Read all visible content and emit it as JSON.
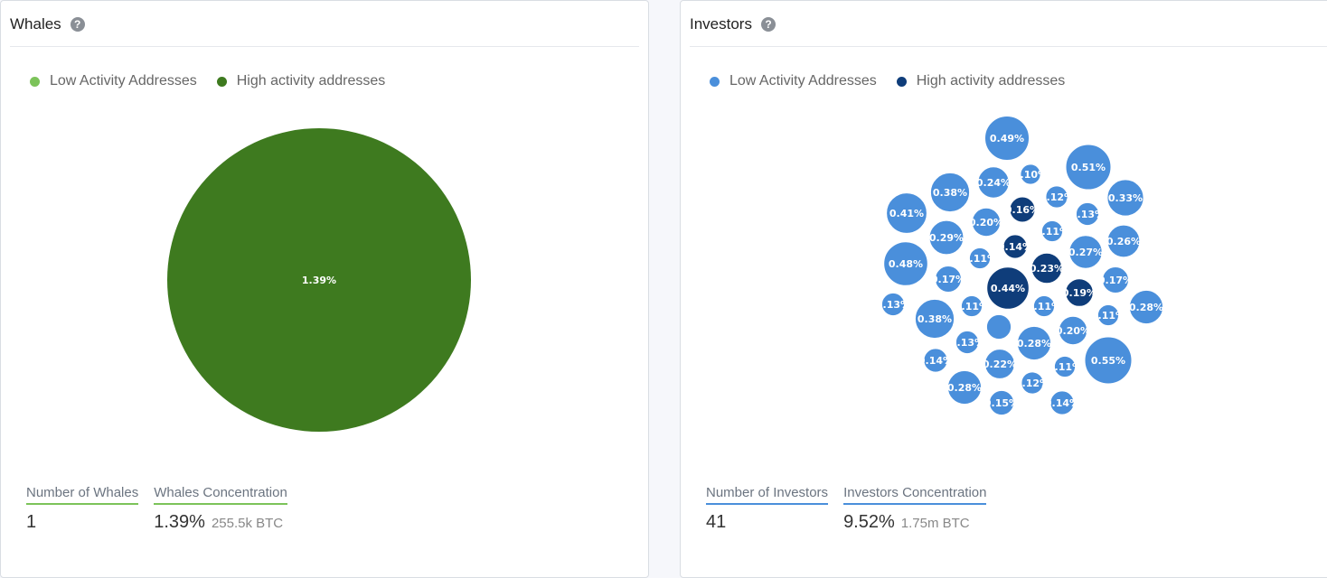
{
  "whales": {
    "title": "Whales",
    "help_icon": "question-circle-icon",
    "legend": [
      {
        "label": "Low Activity Addresses",
        "color": "#7cc35a"
      },
      {
        "label": "High activity addresses",
        "color": "#3e7a1f"
      }
    ],
    "chart_data": {
      "type": "pie",
      "slices": [
        {
          "label": "1.39%",
          "value": 1.39,
          "group": "High activity addresses"
        }
      ]
    },
    "stats": {
      "count_label": "Number of Whales",
      "count_value": "1",
      "concentration_label": "Whales Concentration",
      "concentration_value": "1.39%",
      "concentration_sub": "255.5k BTC"
    }
  },
  "investors": {
    "title": "Investors",
    "help_icon": "question-circle-icon",
    "legend": [
      {
        "label": "Low Activity Addresses",
        "color": "#4a8fdb"
      },
      {
        "label": "High activity addresses",
        "color": "#0f3d7a"
      }
    ],
    "chart_data": {
      "type": "bubble",
      "points": [
        {
          "label": "0.49%",
          "value": 0.49,
          "group": "low"
        },
        {
          "label": "0.51%",
          "value": 0.51,
          "group": "low"
        },
        {
          "label": "0.10%",
          "value": 0.1,
          "group": "low"
        },
        {
          "label": "0.24%",
          "value": 0.24,
          "group": "low"
        },
        {
          "label": "0.38%",
          "value": 0.38,
          "group": "low"
        },
        {
          "label": "0.12%",
          "value": 0.12,
          "group": "low"
        },
        {
          "label": "0.33%",
          "value": 0.33,
          "group": "low"
        },
        {
          "label": "0.16%",
          "value": 0.16,
          "group": "high"
        },
        {
          "label": "0.13%",
          "value": 0.13,
          "group": "low"
        },
        {
          "label": "0.41%",
          "value": 0.41,
          "group": "low"
        },
        {
          "label": "0.20%",
          "value": 0.2,
          "group": "low"
        },
        {
          "label": "0.11%",
          "value": 0.11,
          "group": "low"
        },
        {
          "label": "0.26%",
          "value": 0.26,
          "group": "low"
        },
        {
          "label": "0.29%",
          "value": 0.29,
          "group": "low"
        },
        {
          "label": "0.14%",
          "value": 0.14,
          "group": "high"
        },
        {
          "label": "0.27%",
          "value": 0.27,
          "group": "low"
        },
        {
          "label": "0.11%",
          "value": 0.11,
          "group": "low"
        },
        {
          "label": "0.48%",
          "value": 0.48,
          "group": "low"
        },
        {
          "label": "0.23%",
          "value": 0.23,
          "group": "high"
        },
        {
          "label": "0.17%",
          "value": 0.17,
          "group": "low"
        },
        {
          "label": "0.17%",
          "value": 0.17,
          "group": "low"
        },
        {
          "label": "0.44%",
          "value": 0.44,
          "group": "high"
        },
        {
          "label": "0.19%",
          "value": 0.19,
          "group": "high"
        },
        {
          "label": "0.13%",
          "value": 0.13,
          "group": "low"
        },
        {
          "label": "0.28%",
          "value": 0.28,
          "group": "low"
        },
        {
          "label": "0.11%",
          "value": 0.11,
          "group": "low"
        },
        {
          "label": "0.11%",
          "value": 0.11,
          "group": "low"
        },
        {
          "label": "0.11%",
          "value": 0.11,
          "group": "low"
        },
        {
          "label": "0.38%",
          "value": 0.38,
          "group": "low"
        },
        {
          "label": "",
          "value": 0.15,
          "group": "low"
        },
        {
          "label": "0.20%",
          "value": 0.2,
          "group": "low"
        },
        {
          "label": "0.13%",
          "value": 0.13,
          "group": "low"
        },
        {
          "label": "0.28%",
          "value": 0.28,
          "group": "low"
        },
        {
          "label": "0.14%",
          "value": 0.14,
          "group": "low"
        },
        {
          "label": "0.22%",
          "value": 0.22,
          "group": "low"
        },
        {
          "label": "0.11%",
          "value": 0.11,
          "group": "low"
        },
        {
          "label": "0.55%",
          "value": 0.55,
          "group": "low"
        },
        {
          "label": "0.12%",
          "value": 0.12,
          "group": "low"
        },
        {
          "label": "0.28%",
          "value": 0.28,
          "group": "low"
        },
        {
          "label": "0.15%",
          "value": 0.15,
          "group": "low"
        },
        {
          "label": "0.14%",
          "value": 0.14,
          "group": "low"
        }
      ]
    },
    "stats": {
      "count_label": "Number of Investors",
      "count_value": "41",
      "concentration_label": "Investors Concentration",
      "concentration_value": "9.52%",
      "concentration_sub": "1.75m BTC"
    }
  }
}
